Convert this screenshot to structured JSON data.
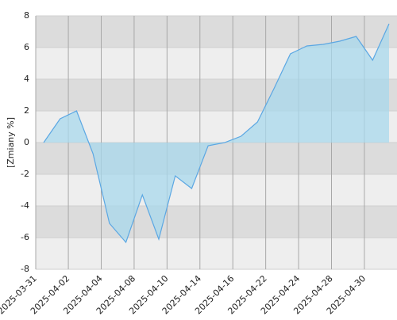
{
  "chart_data": {
    "type": "area",
    "y_label": "[Zmiany %]",
    "categories": [
      "2025-03-31",
      null,
      "2025-04-02",
      null,
      "2025-04-04",
      null,
      "2025-04-08",
      null,
      "2025-04-10",
      null,
      "2025-04-14",
      null,
      "2025-04-16",
      null,
      "2025-04-22",
      null,
      "2025-04-24",
      null,
      "2025-04-28",
      null,
      "2025-04-30",
      null
    ],
    "values": [
      0,
      1.5,
      2.0,
      -0.7,
      -5.1,
      -6.3,
      -3.3,
      -6.1,
      -2.1,
      -2.9,
      -0.2,
      0,
      0.4,
      1.3,
      3.4,
      5.6,
      6.1,
      6.2,
      6.4,
      6.7,
      5.2,
      7.5
    ],
    "color": "#5ba7e3",
    "fill_color": "#a8d8ec",
    "ylim": [
      -8,
      8
    ],
    "yticks": [
      -8,
      -6,
      -4,
      -2,
      0,
      2,
      4,
      6,
      8
    ],
    "band_colors": [
      "#eeeeee",
      "#dcdcdc"
    ],
    "grid": true
  }
}
